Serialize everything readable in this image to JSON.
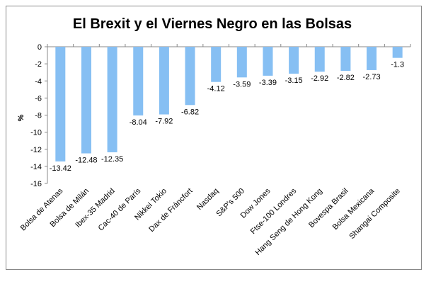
{
  "chart_data": {
    "type": "bar",
    "title": "El Brexit y el Viernes Negro en las Bolsas",
    "xlabel": "",
    "ylabel": "%",
    "ylim": [
      -16,
      0
    ],
    "ytick_step": 2,
    "grid": false,
    "legend": "none",
    "bar_color": "#86BFF3",
    "categories": [
      "Bolsa de Atenas",
      "Bolsa de Milán",
      "Ibex-35 Madrid",
      "Cac-40 de París",
      "Nikkei Tokio",
      "Dax de Fráncfort",
      "Nasdaq",
      "S&P's 500",
      "Dow Jones",
      "Ftse-100 Londres",
      "Hang Seng de Hong Kong",
      "Bovespa Brasil",
      "Bolsa Mexicana",
      "Shangai Composite"
    ],
    "values": [
      -13.42,
      -12.48,
      -12.35,
      -8.04,
      -7.92,
      -6.82,
      -4.12,
      -3.59,
      -3.39,
      -3.15,
      -2.92,
      -2.82,
      -2.73,
      -1.3
    ],
    "data_labels": [
      "-13.42",
      "-12.48",
      "-12.35",
      "-8.04",
      "-7.92",
      "-6.82",
      "-4.12",
      "-3.59",
      "-3.39",
      "-3.15",
      "-2.92",
      "-2.82",
      "-2.73",
      "-1.3"
    ]
  }
}
